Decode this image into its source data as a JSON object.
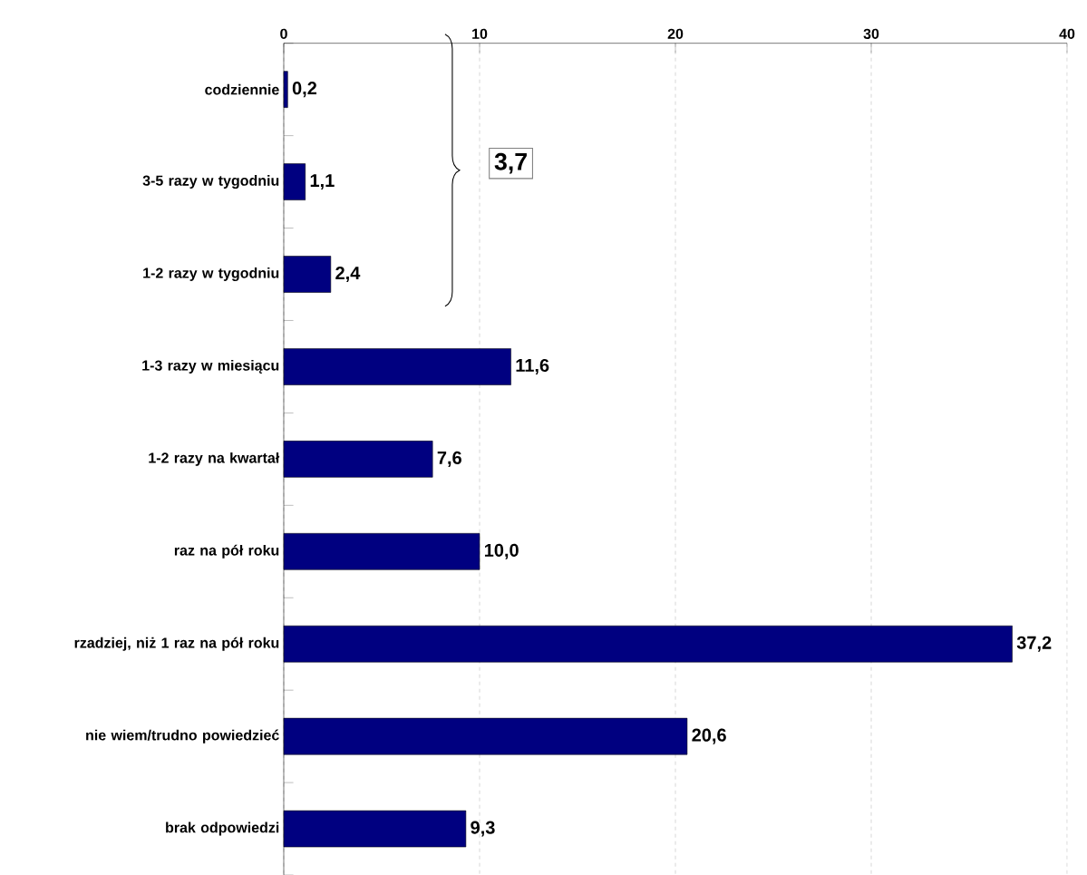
{
  "chart_data": {
    "type": "bar",
    "orientation": "horizontal",
    "categories": [
      "codziennie",
      "3-5 razy w tygodniu",
      "1-2 razy w tygodniu",
      "1-3 razy w miesiącu",
      "1-2 razy na kwartał",
      "raz na pół roku",
      "rzadziej, niż 1 raz na pół roku",
      "nie wiem/trudno powiedzieć",
      "brak odpowiedzi"
    ],
    "values": [
      0.2,
      1.1,
      2.4,
      11.6,
      7.6,
      10.0,
      37.2,
      20.6,
      9.3
    ],
    "value_labels": [
      "0,2",
      "1,1",
      "2,4",
      "11,6",
      "7,6",
      "10,0",
      "37,2",
      "20,6",
      "9,3"
    ],
    "color": "#000080",
    "xlim": [
      0,
      40
    ],
    "xticks": [
      0,
      10,
      20,
      30,
      40
    ],
    "grid": "x",
    "annotations": [
      "3,7"
    ]
  }
}
